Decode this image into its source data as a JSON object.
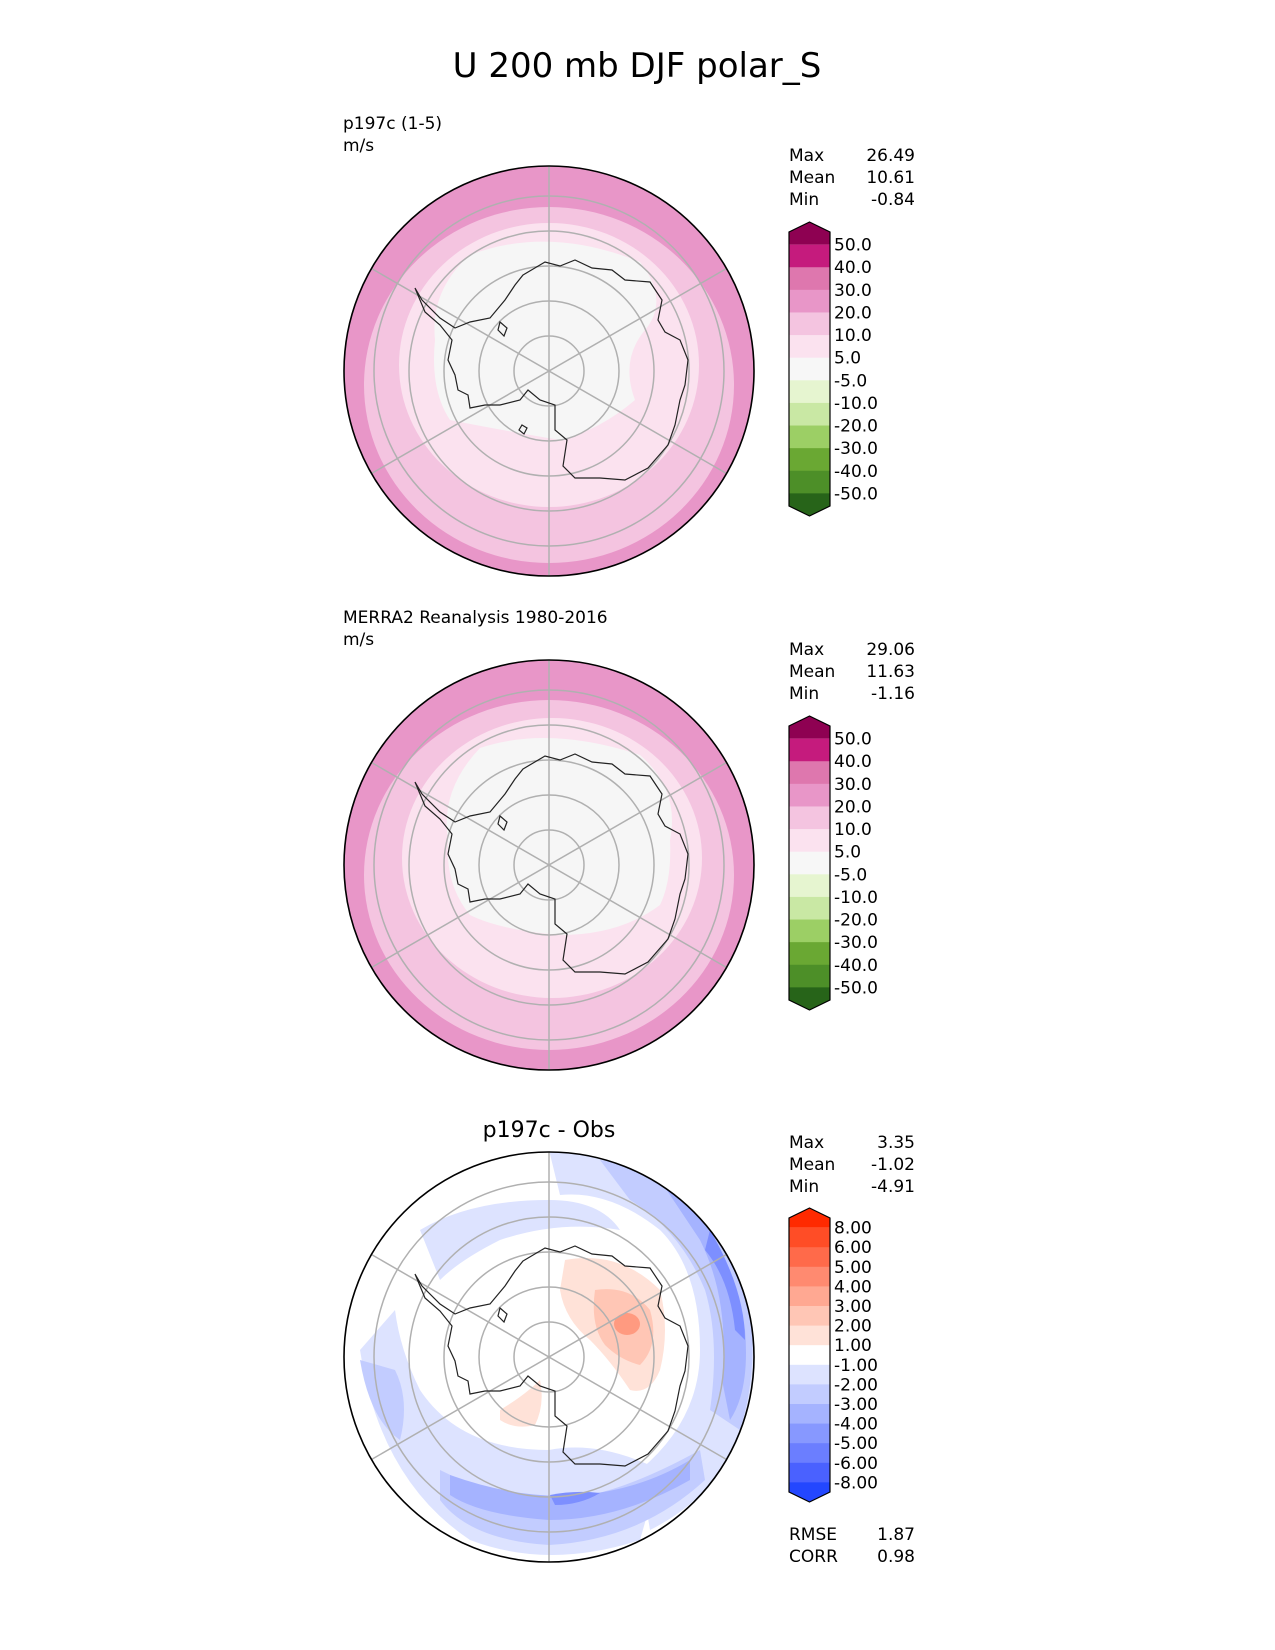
{
  "title": "U 200 mb DJF polar_S",
  "colors": {
    "ring_outer_pink": "#e896c8",
    "ring_mid_pink": "#f4c4e0",
    "ring_light_pink": "#fbe2ef",
    "interior": "#f6f6f6",
    "graticule": "#b0b0b0",
    "coast": "#222222"
  },
  "panels": [
    {
      "id": "model",
      "left_title": "p197c (1-5)",
      "units": "m/s",
      "center_title": "",
      "stats": [
        {
          "label": "Max",
          "value": "26.49"
        },
        {
          "label": "Mean",
          "value": "10.61"
        },
        {
          "label": "Min",
          "value": "-0.84"
        }
      ],
      "colorbar": {
        "labels": [
          "50.0",
          "40.0",
          "30.0",
          "20.0",
          "10.0",
          "5.0",
          "-5.0",
          "-10.0",
          "-20.0",
          "-30.0",
          "-40.0",
          "-50.0"
        ],
        "colors": [
          "#8e0152",
          "#c51b7d",
          "#de77ae",
          "#e896c8",
          "#f4c4e0",
          "#fbe2ef",
          "#f7f7f7",
          "#e6f5d0",
          "#c9e8a4",
          "#9ccf65",
          "#6aa833",
          "#4d8f28",
          "#276419"
        ]
      },
      "extra_stats": []
    },
    {
      "id": "obs",
      "left_title": "MERRA2 Reanalysis 1980-2016",
      "units": "m/s",
      "center_title": "",
      "stats": [
        {
          "label": "Max",
          "value": "29.06"
        },
        {
          "label": "Mean",
          "value": "11.63"
        },
        {
          "label": "Min",
          "value": "-1.16"
        }
      ],
      "colorbar": {
        "labels": [
          "50.0",
          "40.0",
          "30.0",
          "20.0",
          "10.0",
          "5.0",
          "-5.0",
          "-10.0",
          "-20.0",
          "-30.0",
          "-40.0",
          "-50.0"
        ],
        "colors": [
          "#8e0152",
          "#c51b7d",
          "#de77ae",
          "#e896c8",
          "#f4c4e0",
          "#fbe2ef",
          "#f7f7f7",
          "#e6f5d0",
          "#c9e8a4",
          "#9ccf65",
          "#6aa833",
          "#4d8f28",
          "#276419"
        ]
      },
      "extra_stats": []
    },
    {
      "id": "diff",
      "left_title": "",
      "units": "",
      "center_title": "p197c - Obs",
      "stats": [
        {
          "label": "Max",
          "value": "3.35"
        },
        {
          "label": "Mean",
          "value": "-1.02"
        },
        {
          "label": "Min",
          "value": "-4.91"
        }
      ],
      "colorbar": {
        "labels": [
          "8.00",
          "6.00",
          "5.00",
          "4.00",
          "3.00",
          "2.00",
          "1.00",
          "-1.00",
          "-2.00",
          "-3.00",
          "-4.00",
          "-5.00",
          "-6.00",
          "-8.00"
        ],
        "colors": [
          "#ff2a00",
          "#ff4d26",
          "#ff6a4a",
          "#ff8a70",
          "#ffa892",
          "#ffc6b5",
          "#ffe2d8",
          "#ffffff",
          "#dde3ff",
          "#c2ccff",
          "#a5b3ff",
          "#8798ff",
          "#6b7eff",
          "#4a61ff",
          "#2347ff"
        ]
      },
      "extra_stats": [
        {
          "label": "RMSE",
          "value": "1.87"
        },
        {
          "label": "CORR",
          "value": "0.98"
        }
      ]
    }
  ],
  "chart_data": {
    "type": "heatmap",
    "title": "U 200 mb DJF polar_S",
    "projection": "south polar stereographic",
    "field": "zonal wind at 200 mb, DJF",
    "panels": [
      {
        "name": "p197c (1-5)",
        "units": "m/s",
        "max": 26.49,
        "mean": 10.61,
        "min": -0.84,
        "levels": [
          -50,
          -40,
          -30,
          -20,
          -10,
          -5,
          5,
          10,
          20,
          30,
          40,
          50
        ],
        "extend": "both"
      },
      {
        "name": "MERRA2 Reanalysis 1980-2016",
        "units": "m/s",
        "max": 29.06,
        "mean": 11.63,
        "min": -1.16,
        "levels": [
          -50,
          -40,
          -30,
          -20,
          -10,
          -5,
          5,
          10,
          20,
          30,
          40,
          50
        ],
        "extend": "both"
      },
      {
        "name": "p197c - Obs",
        "max": 3.35,
        "mean": -1.02,
        "min": -4.91,
        "rmse": 1.87,
        "corr": 0.98,
        "levels": [
          -8,
          -6,
          -5,
          -4,
          -3,
          -2,
          -1,
          1,
          2,
          3,
          4,
          5,
          6,
          8
        ],
        "extend": "both"
      }
    ]
  }
}
